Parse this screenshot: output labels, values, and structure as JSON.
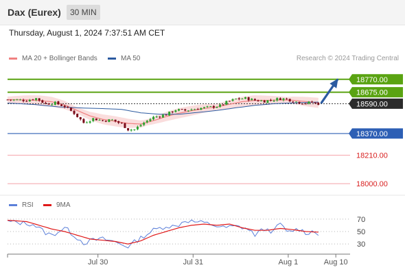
{
  "header": {
    "title": "Dax (Eurex)",
    "timeframe": "30 MIN"
  },
  "timestamp": "Thursday, August 1, 2024 7:37:51 AM CET",
  "credit": "Research © 2024 Trading Central",
  "colors": {
    "bull": "#2ea12e",
    "bear": "#7a0c1a",
    "ma20": "#f08080",
    "ma50": "#2b5aa0",
    "band": "#f9d4d4",
    "resistance": "#5aa312",
    "support": "#2d5fb5",
    "target": "#f4a0a8",
    "arrow": "#2b5aa0",
    "rsi": "#5b7fd9",
    "rsi_ma": "#e01818"
  },
  "chart_data": [
    {
      "type": "candlestick",
      "legend": [
        "MA 20 + Bollinger Bands",
        "MA 50"
      ],
      "ylim": [
        17940,
        18860
      ],
      "x_range": [
        0,
        108
      ],
      "levels": [
        {
          "value": 18770,
          "label": "18770.00",
          "kind": "resistance"
        },
        {
          "value": 18675,
          "label": "18675.00",
          "kind": "resistance"
        },
        {
          "value": 18590,
          "label": "18590.00",
          "kind": "last"
        },
        {
          "value": 18370,
          "label": "18370.00",
          "kind": "support"
        },
        {
          "value": 18210,
          "label": "18210.00",
          "kind": "target"
        },
        {
          "value": 18000,
          "label": "18000.00",
          "kind": "target"
        }
      ],
      "anchors": [
        [
          0,
          18620
        ],
        [
          6,
          18615
        ],
        [
          9,
          18630
        ],
        [
          12,
          18590
        ],
        [
          15,
          18595
        ],
        [
          18,
          18570
        ],
        [
          21,
          18520
        ],
        [
          24,
          18450
        ],
        [
          27,
          18480
        ],
        [
          30,
          18465
        ],
        [
          33,
          18470
        ],
        [
          36,
          18440
        ],
        [
          38,
          18400
        ],
        [
          40,
          18400
        ],
        [
          43,
          18450
        ],
        [
          46,
          18490
        ],
        [
          50,
          18510
        ],
        [
          53,
          18545
        ],
        [
          56,
          18540
        ],
        [
          60,
          18555
        ],
        [
          64,
          18565
        ],
        [
          67,
          18575
        ],
        [
          69,
          18600
        ],
        [
          72,
          18625
        ],
        [
          75,
          18630
        ],
        [
          78,
          18615
        ],
        [
          81,
          18610
        ],
        [
          84,
          18620
        ],
        [
          86,
          18628
        ],
        [
          88,
          18625
        ],
        [
          90,
          18610
        ],
        [
          92,
          18600
        ],
        [
          94,
          18595
        ],
        [
          96,
          18600
        ],
        [
          98,
          18590
        ]
      ],
      "ma20_anchors": [
        [
          0,
          18620
        ],
        [
          6,
          18618
        ],
        [
          10,
          18614
        ],
        [
          14,
          18604
        ],
        [
          18,
          18580
        ],
        [
          22,
          18540
        ],
        [
          26,
          18500
        ],
        [
          30,
          18475
        ],
        [
          34,
          18460
        ],
        [
          38,
          18445
        ],
        [
          42,
          18440
        ],
        [
          46,
          18465
        ],
        [
          50,
          18495
        ],
        [
          54,
          18520
        ],
        [
          58,
          18538
        ],
        [
          62,
          18555
        ],
        [
          66,
          18566
        ],
        [
          70,
          18586
        ],
        [
          74,
          18605
        ],
        [
          78,
          18615
        ],
        [
          82,
          18615
        ],
        [
          86,
          18618
        ],
        [
          90,
          18616
        ],
        [
          94,
          18606
        ],
        [
          98,
          18596
        ]
      ],
      "ma50_anchors": [
        [
          0,
          18595
        ],
        [
          8,
          18585
        ],
        [
          16,
          18567
        ],
        [
          24,
          18558
        ],
        [
          30,
          18554
        ],
        [
          36,
          18548
        ],
        [
          42,
          18523
        ],
        [
          48,
          18512
        ],
        [
          54,
          18512
        ],
        [
          60,
          18526
        ],
        [
          66,
          18540
        ],
        [
          72,
          18560
        ],
        [
          78,
          18578
        ],
        [
          84,
          18590
        ],
        [
          90,
          18596
        ],
        [
          98,
          18602
        ]
      ],
      "band_width": 30,
      "forecast_arrow": [
        [
          99,
          18598
        ],
        [
          104,
          18767
        ]
      ]
    },
    {
      "type": "line",
      "legend": [
        "RSI",
        "9MA"
      ],
      "ylim": [
        17,
        83
      ],
      "levels": [
        70,
        50,
        30
      ],
      "x_ticks": [
        {
          "x": 28.5,
          "label": "Jul 30"
        },
        {
          "x": 58.5,
          "label": "Jul 31"
        },
        {
          "x": 88.5,
          "label": "Aug 1"
        },
        {
          "x": 103.5,
          "label": "Aug 10"
        }
      ],
      "rsi_anchors": [
        [
          0,
          66
        ],
        [
          4,
          64
        ],
        [
          8,
          62
        ],
        [
          12,
          48
        ],
        [
          14,
          44
        ],
        [
          18,
          56
        ],
        [
          22,
          40
        ],
        [
          24,
          32
        ],
        [
          27,
          36
        ],
        [
          30,
          38
        ],
        [
          32,
          36
        ],
        [
          34,
          33
        ],
        [
          38,
          26
        ],
        [
          40,
          33
        ],
        [
          43,
          43
        ],
        [
          46,
          52
        ],
        [
          50,
          59
        ],
        [
          53,
          58
        ],
        [
          56,
          68
        ],
        [
          60,
          65
        ],
        [
          64,
          62
        ],
        [
          68,
          56
        ],
        [
          72,
          58
        ],
        [
          75,
          56
        ],
        [
          78,
          45
        ],
        [
          81,
          54
        ],
        [
          84,
          50
        ],
        [
          86,
          64
        ],
        [
          88,
          48
        ],
        [
          90,
          52
        ],
        [
          92,
          54
        ],
        [
          94,
          48
        ],
        [
          96,
          50
        ],
        [
          98,
          47
        ]
      ],
      "ma9_anchors": [
        [
          0,
          68
        ],
        [
          6,
          66
        ],
        [
          10,
          60
        ],
        [
          14,
          54
        ],
        [
          18,
          50
        ],
        [
          22,
          44
        ],
        [
          26,
          38
        ],
        [
          30,
          36
        ],
        [
          34,
          34
        ],
        [
          38,
          30
        ],
        [
          42,
          35
        ],
        [
          46,
          44
        ],
        [
          50,
          50
        ],
        [
          54,
          56
        ],
        [
          58,
          60
        ],
        [
          62,
          62
        ],
        [
          66,
          60
        ],
        [
          70,
          62
        ],
        [
          74,
          56
        ],
        [
          78,
          52
        ],
        [
          82,
          52
        ],
        [
          86,
          55
        ],
        [
          90,
          53
        ],
        [
          94,
          50
        ],
        [
          98,
          49
        ]
      ]
    }
  ]
}
